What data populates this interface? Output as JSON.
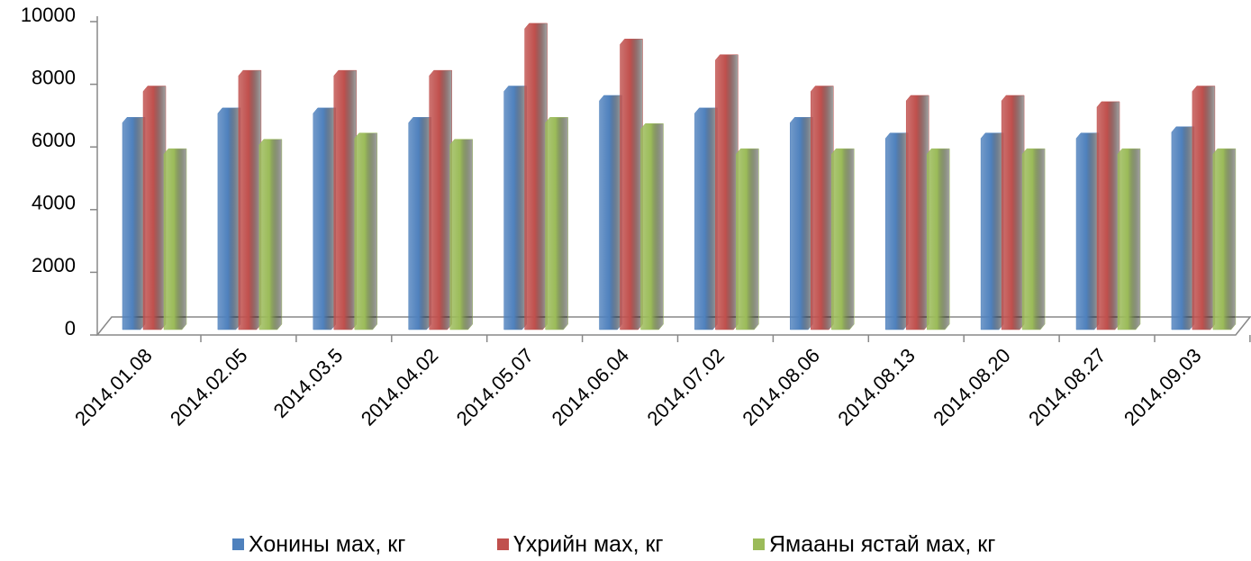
{
  "chart_data": {
    "type": "bar3d",
    "categories": [
      "2014.01.08",
      "2014.02.05",
      "2014.03.5",
      "2014.04.02",
      "2014.05.07",
      "2014.06.04",
      "2014.07.02",
      "2014.08.06",
      "2014.08.13",
      "2014.08.20",
      "2014.08.27",
      "2014.09.03"
    ],
    "series": [
      {
        "name": "Хонины мах, кг",
        "color": "#4f81bd",
        "values": [
          6600,
          6900,
          6900,
          6600,
          7600,
          7300,
          6900,
          6600,
          6100,
          6100,
          6100,
          6300
        ]
      },
      {
        "name": "Үхрийн мах, кг",
        "color": "#c0504d",
        "values": [
          7600,
          8100,
          8100,
          8100,
          9600,
          9100,
          8600,
          7600,
          7300,
          7300,
          7100,
          7600
        ]
      },
      {
        "name": "Ямааны ястай мах, кг",
        "color": "#9bbb59",
        "values": [
          5600,
          5900,
          6100,
          5900,
          6600,
          6400,
          5600,
          5600,
          5600,
          5600,
          5600,
          5600
        ]
      }
    ],
    "ylim": [
      0,
      10000
    ],
    "yticks": [
      0,
      2000,
      4000,
      6000,
      8000,
      10000
    ],
    "legend": "bottom"
  }
}
